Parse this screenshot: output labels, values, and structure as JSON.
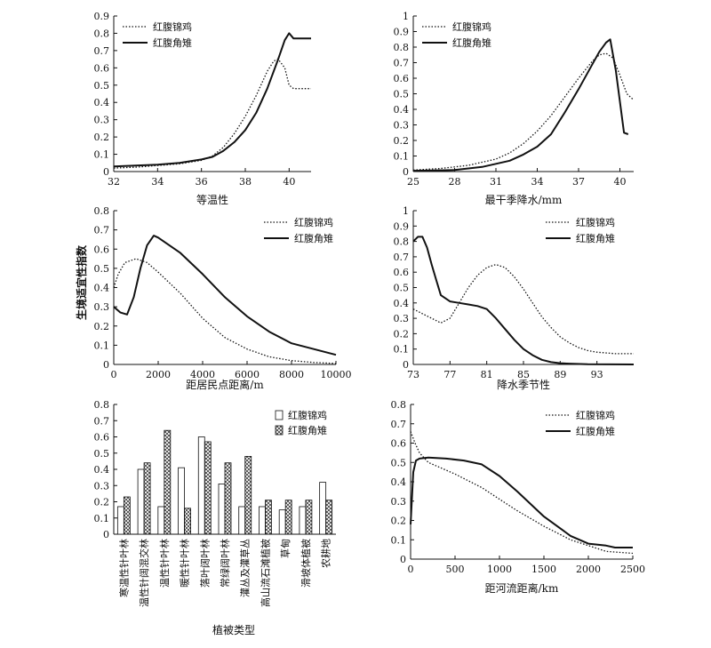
{
  "y_axis_label": "生境适宜性指数",
  "chart_data": [
    {
      "id": "isothermality",
      "type": "line",
      "xlabel": "等温性",
      "ylabel": "",
      "xlim": [
        32,
        41
      ],
      "ylim": [
        0,
        0.9
      ],
      "x_ticks": [
        32,
        34,
        36,
        38,
        40
      ],
      "y_ticks": [
        0,
        0.1,
        0.2,
        0.3,
        0.4,
        0.5,
        0.6,
        0.7,
        0.8,
        0.9
      ],
      "legend_position": "top-left",
      "series": [
        {
          "name": "红腹锦鸡",
          "style": "dotted",
          "x": [
            32,
            33,
            34,
            35,
            36,
            36.5,
            37,
            37.5,
            38,
            38.5,
            39,
            39.3,
            39.5,
            39.8,
            40,
            40.2,
            41
          ],
          "y": [
            0.02,
            0.025,
            0.035,
            0.045,
            0.065,
            0.09,
            0.14,
            0.22,
            0.32,
            0.44,
            0.58,
            0.64,
            0.65,
            0.6,
            0.5,
            0.48,
            0.48
          ]
        },
        {
          "name": "红腹角雉",
          "style": "solid",
          "x": [
            32,
            33,
            34,
            35,
            36,
            36.5,
            37,
            37.5,
            38,
            38.5,
            39,
            39.5,
            39.8,
            40,
            40.2,
            41
          ],
          "y": [
            0.03,
            0.035,
            0.04,
            0.05,
            0.07,
            0.085,
            0.12,
            0.17,
            0.24,
            0.34,
            0.48,
            0.65,
            0.76,
            0.8,
            0.77,
            0.77
          ]
        }
      ]
    },
    {
      "id": "driest-quarter-precip",
      "type": "line",
      "xlabel": "最干季降水/mm",
      "ylabel": "",
      "xlim": [
        25,
        41
      ],
      "ylim": [
        0,
        1.0
      ],
      "x_ticks": [
        25,
        28,
        31,
        34,
        37,
        40
      ],
      "y_ticks": [
        0,
        0.1,
        0.2,
        0.3,
        0.4,
        0.5,
        0.6,
        0.7,
        0.8,
        0.9,
        1.0
      ],
      "legend_position": "top-left",
      "series": [
        {
          "name": "红腹锦鸡",
          "style": "dotted",
          "x": [
            25,
            27,
            29,
            31,
            32,
            33,
            34,
            35,
            36,
            37,
            38,
            38.5,
            39,
            39.5,
            40,
            40.5,
            41
          ],
          "y": [
            0.01,
            0.02,
            0.04,
            0.08,
            0.12,
            0.18,
            0.26,
            0.36,
            0.48,
            0.6,
            0.71,
            0.75,
            0.76,
            0.73,
            0.62,
            0.5,
            0.46
          ]
        },
        {
          "name": "红腹角雉",
          "style": "solid",
          "x": [
            25,
            28,
            30,
            31,
            32,
            33,
            34,
            35,
            36,
            37,
            38,
            38.5,
            39,
            39.3,
            39.7,
            40,
            40.3,
            40.6
          ],
          "y": [
            0.005,
            0.01,
            0.03,
            0.05,
            0.07,
            0.11,
            0.16,
            0.24,
            0.38,
            0.53,
            0.69,
            0.77,
            0.83,
            0.85,
            0.65,
            0.45,
            0.25,
            0.24
          ]
        }
      ]
    },
    {
      "id": "settlement-distance",
      "type": "line",
      "xlabel": "距居民点距离/m",
      "ylabel": "",
      "xlim": [
        0,
        10000
      ],
      "ylim": [
        0,
        0.8
      ],
      "x_ticks": [
        0,
        2000,
        4000,
        6000,
        8000,
        10000
      ],
      "y_ticks": [
        0,
        0.1,
        0.2,
        0.3,
        0.4,
        0.5,
        0.6,
        0.7,
        0.8
      ],
      "legend_position": "top-right",
      "series": [
        {
          "name": "红腹锦鸡",
          "style": "dotted",
          "x": [
            0,
            200,
            500,
            1000,
            1500,
            2000,
            3000,
            4000,
            5000,
            6000,
            7000,
            8000,
            9000,
            10000
          ],
          "y": [
            0.4,
            0.47,
            0.53,
            0.55,
            0.53,
            0.48,
            0.37,
            0.24,
            0.14,
            0.08,
            0.04,
            0.02,
            0.01,
            0.005
          ]
        },
        {
          "name": "红腹角雉",
          "style": "solid",
          "x": [
            0,
            300,
            600,
            900,
            1200,
            1500,
            1800,
            2000,
            3000,
            4000,
            5000,
            6000,
            7000,
            8000,
            9000,
            10000
          ],
          "y": [
            0.3,
            0.27,
            0.26,
            0.35,
            0.5,
            0.62,
            0.67,
            0.66,
            0.58,
            0.47,
            0.35,
            0.25,
            0.17,
            0.11,
            0.08,
            0.05
          ]
        }
      ]
    },
    {
      "id": "precip-seasonality",
      "type": "line",
      "xlabel": "降水季节性",
      "ylabel": "",
      "xlim": [
        73,
        97
      ],
      "ylim": [
        0,
        1.0
      ],
      "x_ticks": [
        73,
        77,
        81,
        85,
        89,
        93
      ],
      "y_ticks": [
        0,
        0.1,
        0.2,
        0.3,
        0.4,
        0.5,
        0.6,
        0.7,
        0.8,
        0.9,
        1.0
      ],
      "legend_position": "top-right",
      "series": [
        {
          "name": "红腹锦鸡",
          "style": "dotted",
          "x": [
            73,
            74,
            75,
            76,
            77,
            78,
            79,
            80,
            81,
            82,
            83,
            84,
            85,
            86,
            87,
            88,
            89,
            90,
            91,
            92,
            93,
            95,
            97
          ],
          "y": [
            0.36,
            0.33,
            0.3,
            0.27,
            0.3,
            0.4,
            0.5,
            0.58,
            0.63,
            0.65,
            0.63,
            0.57,
            0.49,
            0.4,
            0.31,
            0.24,
            0.18,
            0.14,
            0.11,
            0.09,
            0.08,
            0.07,
            0.07
          ]
        },
        {
          "name": "红腹角雉",
          "style": "solid",
          "x": [
            73,
            73.5,
            74,
            74.5,
            75,
            75.5,
            76,
            77,
            78,
            79,
            80,
            81,
            82,
            83,
            84,
            85,
            86,
            87,
            88,
            89,
            90,
            92,
            97
          ],
          "y": [
            0.8,
            0.83,
            0.83,
            0.76,
            0.65,
            0.55,
            0.45,
            0.41,
            0.4,
            0.39,
            0.38,
            0.36,
            0.3,
            0.23,
            0.16,
            0.1,
            0.06,
            0.03,
            0.015,
            0.008,
            0.005,
            0.002,
            0.0
          ]
        }
      ]
    },
    {
      "id": "vegetation-type",
      "type": "bar",
      "xlabel": "植被类型",
      "ylabel": "",
      "ylim": [
        0,
        0.8
      ],
      "y_ticks": [
        0,
        0.1,
        0.2,
        0.3,
        0.4,
        0.5,
        0.6,
        0.7,
        0.8
      ],
      "legend_position": "top-right",
      "categories": [
        "寒温性针叶林",
        "温性针阔混交林",
        "温性针叶林",
        "暖性针叶林",
        "落叶阔叶林",
        "常绿阔叶林",
        "灌丛及灌草丛",
        "高山流石滩植被",
        "草甸",
        "滑坡体植被",
        "农耕地"
      ],
      "series": [
        {
          "name": "红腹锦鸡",
          "pattern": "plain",
          "values": [
            0.17,
            0.4,
            0.17,
            0.41,
            0.6,
            0.31,
            0.17,
            0.17,
            0.15,
            0.17,
            0.32
          ]
        },
        {
          "name": "红腹角雉",
          "pattern": "cross-hatch",
          "values": [
            0.23,
            0.44,
            0.64,
            0.16,
            0.57,
            0.44,
            0.48,
            0.21,
            0.21,
            0.21,
            0.21
          ]
        }
      ]
    },
    {
      "id": "river-distance",
      "type": "line",
      "xlabel": "距河流距离/km",
      "ylabel": "",
      "xlim": [
        0,
        2500
      ],
      "ylim": [
        0,
        0.8
      ],
      "x_ticks": [
        0,
        500,
        1000,
        1500,
        2000,
        2500
      ],
      "y_ticks": [
        0,
        0.1,
        0.2,
        0.3,
        0.4,
        0.5,
        0.6,
        0.7,
        0.8
      ],
      "legend_position": "top-right",
      "series": [
        {
          "name": "红腹锦鸡",
          "style": "dotted",
          "x": [
            0,
            50,
            100,
            200,
            300,
            500,
            800,
            1000,
            1200,
            1500,
            1800,
            2000,
            2200,
            2500
          ],
          "y": [
            0.66,
            0.6,
            0.55,
            0.5,
            0.48,
            0.44,
            0.37,
            0.31,
            0.25,
            0.17,
            0.1,
            0.07,
            0.04,
            0.03
          ]
        },
        {
          "name": "红腹角雉",
          "style": "solid",
          "x": [
            0,
            30,
            60,
            100,
            200,
            400,
            600,
            800,
            1000,
            1200,
            1500,
            1800,
            2000,
            2200,
            2300,
            2500
          ],
          "y": [
            0.18,
            0.45,
            0.51,
            0.52,
            0.525,
            0.52,
            0.51,
            0.49,
            0.43,
            0.35,
            0.22,
            0.12,
            0.08,
            0.07,
            0.06,
            0.06
          ]
        }
      ]
    }
  ]
}
